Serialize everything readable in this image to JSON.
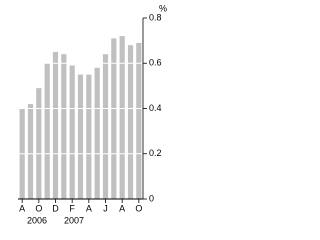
{
  "chart_data": {
    "type": "bar",
    "y_label": "%",
    "categories": [
      "A",
      null,
      "O",
      null,
      "D",
      null,
      "F",
      null,
      "A",
      null,
      "J",
      null,
      "A",
      null,
      "O"
    ],
    "values": [
      0.4,
      0.42,
      0.49,
      0.6,
      0.65,
      0.64,
      0.59,
      0.55,
      0.55,
      0.58,
      0.64,
      0.71,
      0.72,
      0.68,
      0.69
    ],
    "color": "#c0c0c0",
    "ylim": [
      0,
      0.8
    ],
    "yticks": [
      0,
      0.2,
      0.4,
      0.6,
      0.8
    ],
    "grid": true,
    "annotations": [
      "2006",
      "2007"
    ]
  }
}
